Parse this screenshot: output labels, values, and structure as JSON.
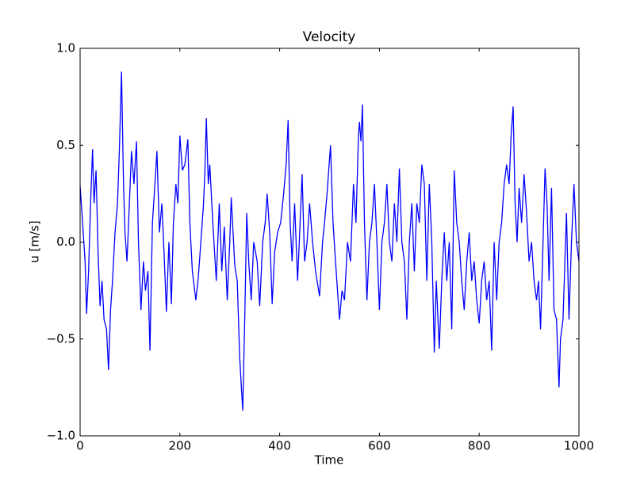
{
  "chart_data": {
    "type": "line",
    "title": "Velocity",
    "xlabel": "Time",
    "ylabel": "u [m/s]",
    "xlim": [
      0,
      1000
    ],
    "ylim": [
      -1.0,
      1.0
    ],
    "xticks": [
      0,
      200,
      400,
      600,
      800,
      1000
    ],
    "yticks": [
      {
        "value": -1.0,
        "label": "−1.0"
      },
      {
        "value": -0.5,
        "label": "−0.5"
      },
      {
        "value": 0.0,
        "label": "0.0"
      },
      {
        "value": 0.5,
        "label": "0.5"
      },
      {
        "value": 1.0,
        "label": "1.0"
      }
    ],
    "grid": false,
    "x": [
      0,
      5,
      10,
      13,
      17,
      21,
      25,
      28,
      32,
      36,
      40,
      44,
      48,
      53,
      57,
      61,
      65,
      70,
      75,
      79,
      83,
      87,
      90,
      94,
      98,
      103,
      108,
      113,
      117,
      122,
      127,
      131,
      136,
      140,
      145,
      150,
      154,
      159,
      164,
      169,
      173,
      178,
      183,
      187,
      192,
      196,
      200,
      205,
      210,
      216,
      220,
      225,
      232,
      237,
      242,
      247,
      250,
      253,
      257,
      260,
      266,
      273,
      279,
      284,
      289,
      295,
      300,
      303,
      310,
      315,
      320,
      326,
      330,
      334,
      338,
      343,
      348,
      355,
      360,
      366,
      371,
      375,
      380,
      385,
      390,
      396,
      402,
      408,
      413,
      417,
      421,
      425,
      430,
      436,
      441,
      445,
      450,
      455,
      460,
      466,
      472,
      480,
      486,
      490,
      495,
      502,
      507,
      512,
      516,
      520,
      525,
      530,
      536,
      542,
      548,
      553,
      558,
      560,
      563,
      566,
      570,
      575,
      580,
      585,
      590,
      595,
      600,
      605,
      610,
      615,
      620,
      625,
      630,
      635,
      640,
      645,
      650,
      655,
      660,
      665,
      670,
      675,
      680,
      685,
      690,
      695,
      700,
      705,
      710,
      714,
      720,
      725,
      730,
      735,
      740,
      745,
      750,
      755,
      760,
      765,
      770,
      775,
      780,
      785,
      790,
      795,
      800,
      805,
      810,
      815,
      820,
      825,
      830,
      835,
      840,
      845,
      850,
      855,
      860,
      864,
      868,
      872,
      876,
      880,
      885,
      890,
      895,
      900,
      905,
      910,
      915,
      919,
      923,
      928,
      932,
      936,
      940,
      945,
      950,
      955,
      960,
      963,
      968,
      975,
      980,
      985,
      990,
      995,
      1000
    ],
    "series": [
      {
        "name": "u",
        "color": "#0000ff",
        "values": [
          0.29,
          0.1,
          -0.1,
          -0.37,
          -0.15,
          0.2,
          0.48,
          0.2,
          0.37,
          -0.05,
          -0.33,
          -0.2,
          -0.4,
          -0.45,
          -0.66,
          -0.35,
          -0.2,
          0.05,
          0.2,
          0.5,
          0.88,
          0.3,
          0.05,
          -0.1,
          0.15,
          0.47,
          0.3,
          0.52,
          0.0,
          -0.35,
          -0.1,
          -0.25,
          -0.15,
          -0.56,
          0.1,
          0.3,
          0.47,
          0.05,
          0.2,
          -0.1,
          -0.36,
          0.0,
          -0.32,
          0.1,
          0.3,
          0.2,
          0.55,
          0.37,
          0.4,
          0.53,
          0.1,
          -0.15,
          -0.3,
          -0.18,
          0.0,
          0.18,
          0.35,
          0.64,
          0.3,
          0.4,
          0.1,
          -0.2,
          0.2,
          -0.15,
          0.08,
          -0.3,
          0.0,
          0.23,
          -0.12,
          -0.2,
          -0.6,
          -0.87,
          -0.4,
          0.15,
          -0.1,
          -0.3,
          0.0,
          -0.1,
          -0.33,
          0.0,
          0.1,
          0.25,
          0.05,
          -0.32,
          -0.05,
          0.05,
          0.1,
          0.25,
          0.4,
          0.63,
          0.1,
          -0.1,
          0.2,
          -0.2,
          0.1,
          0.35,
          -0.1,
          0.0,
          0.2,
          0.0,
          -0.15,
          -0.28,
          0.0,
          0.1,
          0.25,
          0.5,
          0.1,
          -0.1,
          -0.25,
          -0.4,
          -0.25,
          -0.3,
          0.0,
          -0.1,
          0.3,
          0.1,
          0.55,
          0.62,
          0.52,
          0.71,
          0.1,
          -0.3,
          0.0,
          0.1,
          0.3,
          0.0,
          -0.35,
          0.0,
          0.1,
          0.3,
          0.0,
          -0.1,
          0.2,
          0.0,
          0.38,
          0.0,
          -0.1,
          -0.4,
          0.0,
          0.2,
          -0.15,
          0.2,
          0.1,
          0.4,
          0.3,
          -0.2,
          0.3,
          0.0,
          -0.57,
          -0.2,
          -0.55,
          -0.2,
          0.05,
          -0.2,
          0.0,
          -0.45,
          0.37,
          0.1,
          0.0,
          -0.2,
          -0.35,
          -0.1,
          0.05,
          -0.2,
          -0.1,
          -0.3,
          -0.42,
          -0.2,
          -0.1,
          -0.3,
          -0.2,
          -0.56,
          0.0,
          -0.3,
          0.0,
          0.1,
          0.3,
          0.4,
          0.3,
          0.55,
          0.7,
          0.2,
          0.0,
          0.28,
          0.1,
          0.35,
          0.15,
          -0.1,
          0.0,
          -0.2,
          -0.3,
          -0.2,
          -0.45,
          0.0,
          0.38,
          0.2,
          -0.2,
          0.28,
          -0.35,
          -0.4,
          -0.75,
          -0.5,
          -0.4,
          0.15,
          -0.4,
          0.0,
          0.3,
          0.0,
          -0.1
        ]
      }
    ]
  }
}
